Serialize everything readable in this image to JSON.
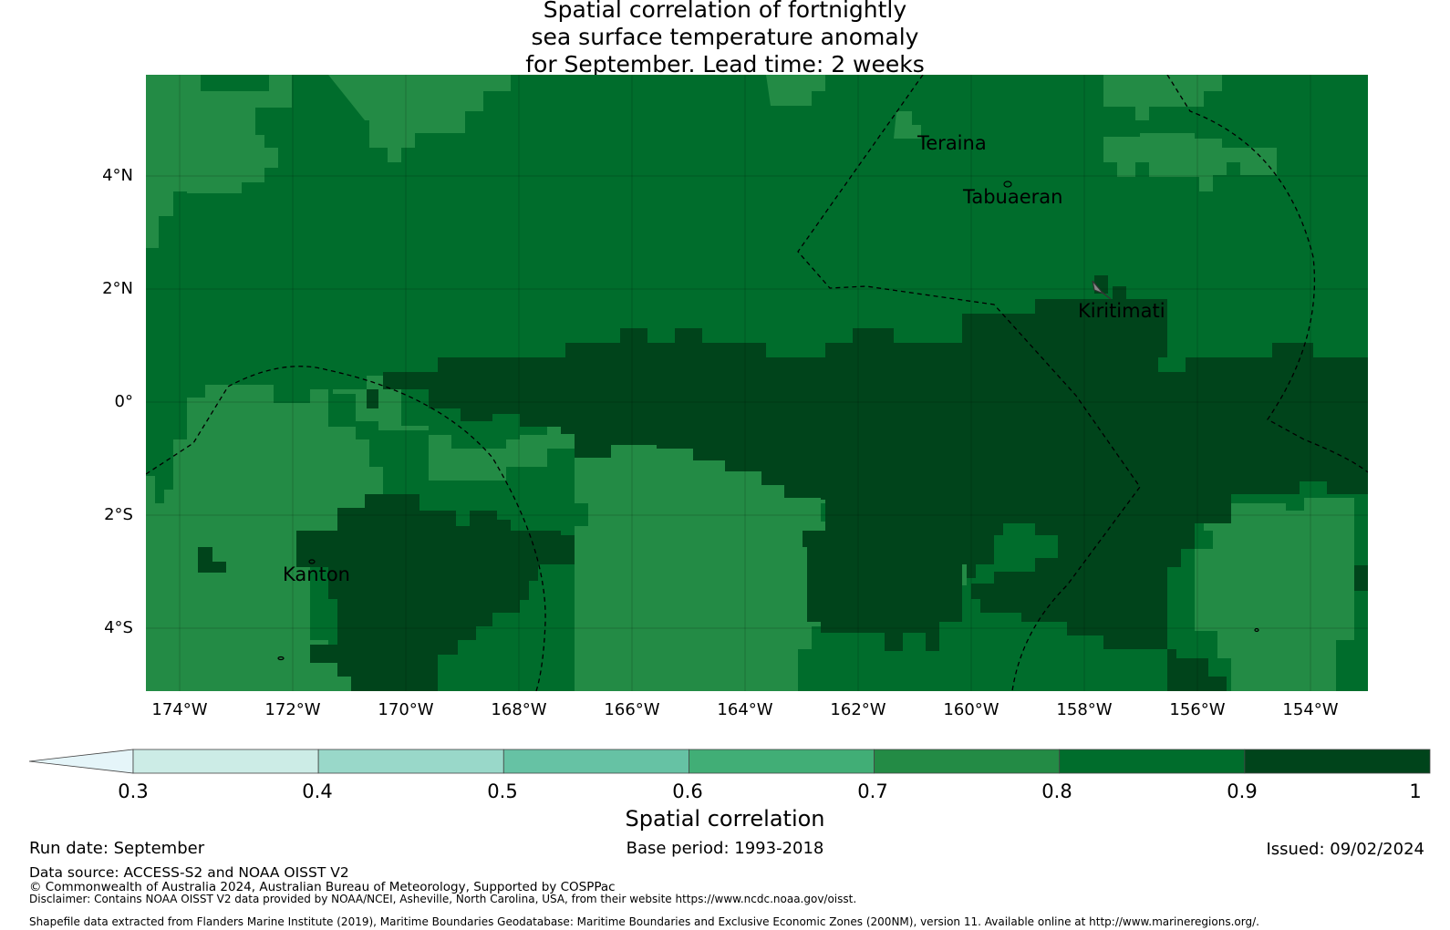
{
  "title": {
    "line1": "Spatial correlation of fortnightly",
    "line2": "sea surface temperature anomaly",
    "line3": "for September. Lead time: 2 weeks"
  },
  "map": {
    "lon_range": [
      -174.6,
      -153.0
    ],
    "lat_range": [
      -5.1,
      5.8
    ],
    "latitude_ticks": [
      "4°N",
      "2°N",
      "0°",
      "2°S",
      "4°S"
    ],
    "longitude_ticks": [
      "174°W",
      "172°W",
      "170°W",
      "168°W",
      "166°W",
      "164°W",
      "162°W",
      "160°W",
      "158°W",
      "156°W",
      "154°W"
    ],
    "grid": true,
    "places": [
      {
        "name": "Teraina",
        "label": "Teraina"
      },
      {
        "name": "Tabuaeran",
        "label": "Tabuaeran"
      },
      {
        "name": "Kiritimati",
        "label": "Kiritimati"
      },
      {
        "name": "Kanton",
        "label": "Kanton"
      }
    ],
    "colors": {
      "c07": "#238b45",
      "c08": "#006d2c",
      "c09": "#00441b"
    }
  },
  "colorbar": {
    "label": "Spatial correlation",
    "ticks": [
      "0.3",
      "0.4",
      "0.5",
      "0.6",
      "0.7",
      "0.8",
      "0.9",
      "1"
    ],
    "extend": "min",
    "colors": [
      "#e5f5f9",
      "#ccece6",
      "#99d8c9",
      "#66c2a4",
      "#41ae76",
      "#238b45",
      "#006d2c",
      "#00441b"
    ]
  },
  "footer": {
    "run_date": "Run date: September",
    "base_period": "Base period: 1993-2018",
    "issued": "Issued: 09/02/2024",
    "data_source": "Data source: ACCESS-S2 and NOAA OISST V2",
    "copyright": "© Commonwealth of Australia 2024, Australian Bureau of Meteorology, Supported by COSPPac",
    "disclaimer": "Disclaimer: Contains NOAA OISST V2 data provided by NOAA/NCEI, Asheville, North Carolina, USA, from their website https://www.ncdc.noaa.gov/oisst.",
    "shapefile": "Shapefile data extracted from Flanders Marine Institute (2019), Maritime Boundaries Geodatabase: Maritime Boundaries and Exclusive Economic Zones (200NM), version 11. Available online at http://www.marineregions.org/."
  }
}
